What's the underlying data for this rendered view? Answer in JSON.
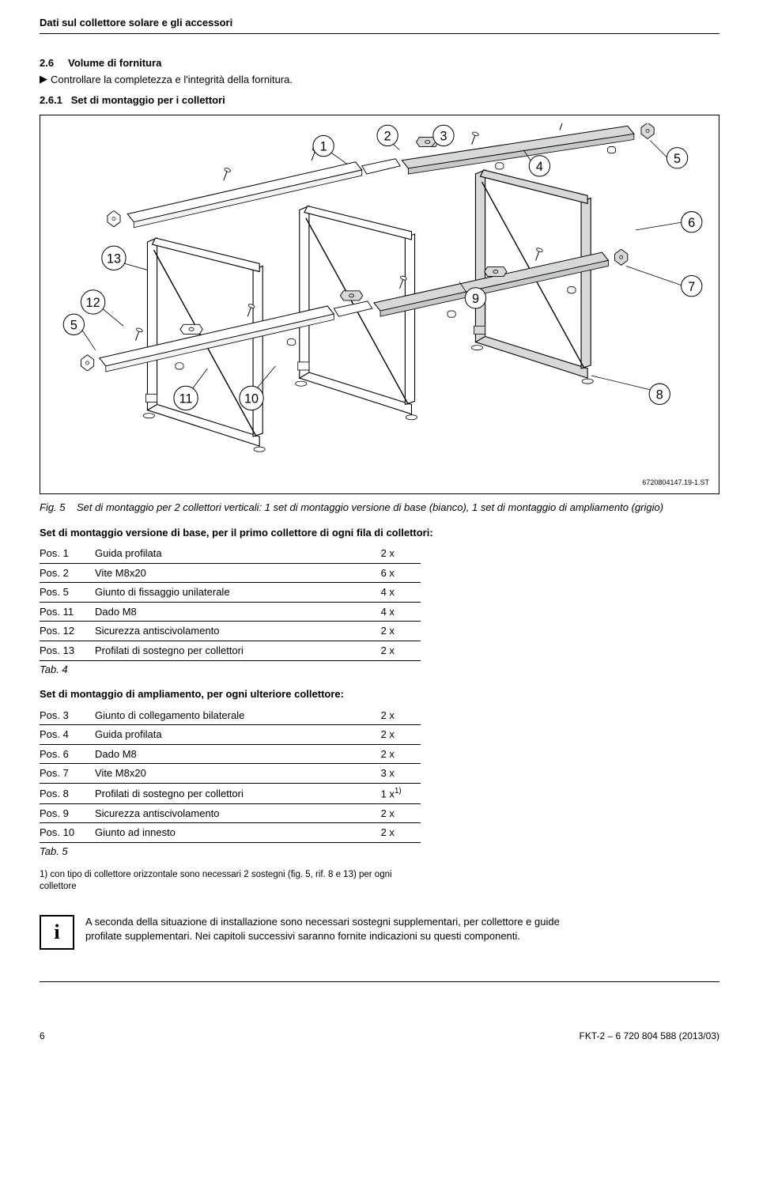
{
  "header": {
    "title": "Dati sul collettore solare e gli accessori"
  },
  "section": {
    "num": "2.6",
    "title": "Volume di fornitura",
    "bullet_text": "Controllare la completezza e l'integrità della fornitura.",
    "sub_num": "2.6.1",
    "sub_title": "Set di montaggio per i collettori"
  },
  "figure": {
    "code": "6720804147.19-1.ST",
    "caption_label": "Fig. 5",
    "caption_text": "Set di montaggio per 2 collettori verticali: 1 set di montaggio versione di base (bianco), 1 set di montaggio di ampliamento (grigio)",
    "callouts": [
      "1",
      "2",
      "3",
      "4",
      "5",
      "6",
      "7",
      "8",
      "9",
      "10",
      "11",
      "12",
      "13"
    ]
  },
  "tab4": {
    "intro": "Set di montaggio versione di base, per il primo collettore di ogni fila di collettori:",
    "rows": [
      {
        "pos": "Pos. 1",
        "desc": "Guida profilata",
        "qty": "2 x"
      },
      {
        "pos": "Pos. 2",
        "desc": "Vite M8x20",
        "qty": "6 x"
      },
      {
        "pos": "Pos. 5",
        "desc": "Giunto di fissaggio unilaterale",
        "qty": "4 x"
      },
      {
        "pos": "Pos. 11",
        "desc": "Dado M8",
        "qty": "4 x"
      },
      {
        "pos": "Pos. 12",
        "desc": "Sicurezza antiscivolamento",
        "qty": "2 x"
      },
      {
        "pos": "Pos. 13",
        "desc": "Profilati di sostegno per collettori",
        "qty": "2 x"
      }
    ],
    "label": "Tab. 4"
  },
  "tab5": {
    "intro": "Set di montaggio di ampliamento, per ogni ulteriore collettore:",
    "rows": [
      {
        "pos": "Pos. 3",
        "desc": "Giunto di collegamento bilaterale",
        "qty": "2 x"
      },
      {
        "pos": "Pos. 4",
        "desc": "Guida profilata",
        "qty": "2 x"
      },
      {
        "pos": "Pos. 6",
        "desc": "Dado M8",
        "qty": "2 x"
      },
      {
        "pos": "Pos. 7",
        "desc": "Vite M8x20",
        "qty": "3 x"
      },
      {
        "pos": "Pos. 8",
        "desc": "Profilati di sostegno per collettori",
        "qty": "1 x",
        "sup": "1)"
      },
      {
        "pos": "Pos. 9",
        "desc": "Sicurezza antiscivolamento",
        "qty": "2 x"
      },
      {
        "pos": "Pos. 10",
        "desc": "Giunto ad innesto",
        "qty": "2 x"
      }
    ],
    "label": "Tab. 5",
    "footnote": "1) con tipo di collettore orizzontale sono necessari 2 sostegni (fig. 5, rif. 8 e 13) per ogni collettore"
  },
  "info": {
    "text": "A seconda della situazione di installazione sono necessari sostegni supplementari, per collettore e guide profilate supplementari. Nei capitoli successivi saranno fornite indicazioni su questi componenti."
  },
  "footer": {
    "page": "6",
    "doc": "FKT-2 – 6 720 804 588 (2013/03)"
  },
  "colors": {
    "text": "#000000",
    "bg": "#ffffff",
    "grey_fill": "#d7d8d9",
    "light_fill": "#ffffff",
    "stroke": "#000000"
  }
}
